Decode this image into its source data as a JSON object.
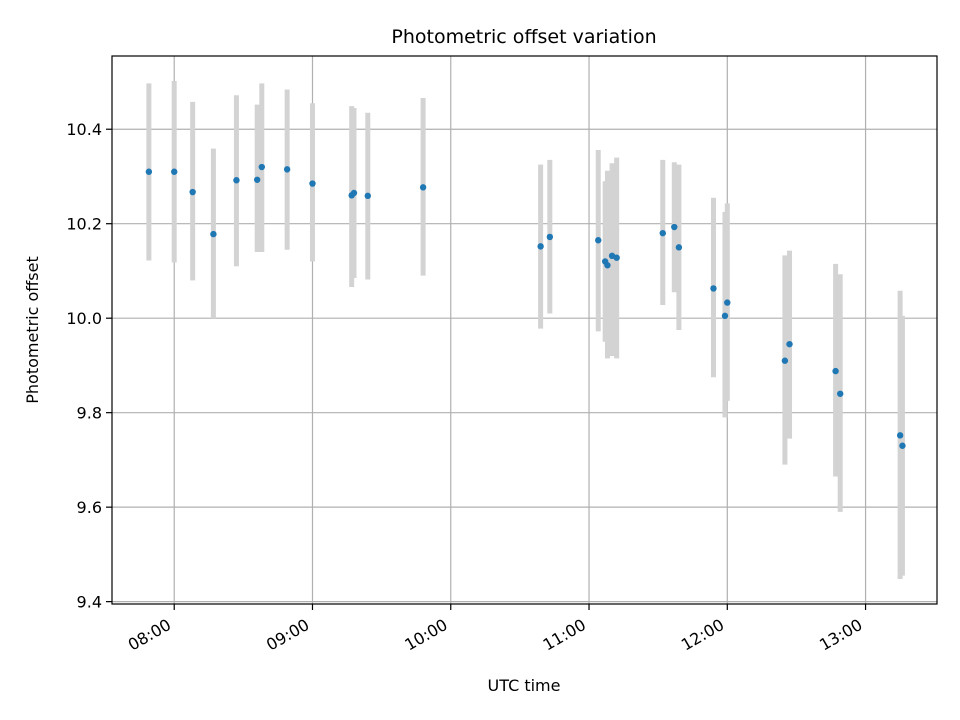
{
  "chart_data": {
    "type": "scatter",
    "title": "Photometric offset variation",
    "xlabel": "UTC time",
    "ylabel": "Photometric offset",
    "grid": true,
    "legend": "none",
    "x_ticks": [
      "08:00",
      "09:00",
      "10:00",
      "11:00",
      "12:00",
      "13:00"
    ],
    "y_ticks": [
      "9.4",
      "9.6",
      "9.8",
      "10.0",
      "10.2",
      "10.4"
    ],
    "xlim": [
      "07:33",
      "13:31"
    ],
    "ylim": [
      9.395,
      10.555
    ],
    "colors": {
      "point": "#1f77b4",
      "errorbar": "#d3d3d3",
      "grid": "#b0b0b0"
    },
    "points": [
      {
        "time": "07:49",
        "y": 10.31,
        "err_low": 10.122,
        "err_high": 10.497
      },
      {
        "time": "08:00",
        "y": 10.31,
        "err_low": 10.118,
        "err_high": 10.502
      },
      {
        "time": "08:08",
        "y": 10.267,
        "err_low": 10.08,
        "err_high": 10.458
      },
      {
        "time": "08:17",
        "y": 10.178,
        "err_low": 10.0,
        "err_high": 10.359
      },
      {
        "time": "08:27",
        "y": 10.292,
        "err_low": 10.11,
        "err_high": 10.472
      },
      {
        "time": "08:36",
        "y": 10.293,
        "err_low": 10.14,
        "err_high": 10.452
      },
      {
        "time": "08:38",
        "y": 10.32,
        "err_low": 10.14,
        "err_high": 10.497
      },
      {
        "time": "08:49",
        "y": 10.315,
        "err_low": 10.145,
        "err_high": 10.484
      },
      {
        "time": "09:00",
        "y": 10.285,
        "err_low": 10.12,
        "err_high": 10.455
      },
      {
        "time": "09:17",
        "y": 10.26,
        "err_low": 10.066,
        "err_high": 10.449
      },
      {
        "time": "09:18",
        "y": 10.265,
        "err_low": 10.085,
        "err_high": 10.445
      },
      {
        "time": "09:24",
        "y": 10.259,
        "err_low": 10.082,
        "err_high": 10.435
      },
      {
        "time": "09:48",
        "y": 10.277,
        "err_low": 10.09,
        "err_high": 10.466
      },
      {
        "time": "10:39",
        "y": 10.152,
        "err_low": 9.978,
        "err_high": 10.325
      },
      {
        "time": "10:43",
        "y": 10.172,
        "err_low": 10.01,
        "err_high": 10.335
      },
      {
        "time": "11:04",
        "y": 10.165,
        "err_low": 9.972,
        "err_high": 10.356
      },
      {
        "time": "11:07",
        "y": 10.12,
        "err_low": 9.95,
        "err_high": 10.29
      },
      {
        "time": "11:08",
        "y": 10.112,
        "err_low": 9.915,
        "err_high": 10.312
      },
      {
        "time": "11:10",
        "y": 10.132,
        "err_low": 9.92,
        "err_high": 10.328
      },
      {
        "time": "11:12",
        "y": 10.128,
        "err_low": 9.915,
        "err_high": 10.34
      },
      {
        "time": "11:32",
        "y": 10.18,
        "err_low": 10.028,
        "err_high": 10.335
      },
      {
        "time": "11:37",
        "y": 10.193,
        "err_low": 10.055,
        "err_high": 10.33
      },
      {
        "time": "11:39",
        "y": 10.15,
        "err_low": 9.975,
        "err_high": 10.325
      },
      {
        "time": "11:54",
        "y": 10.063,
        "err_low": 9.875,
        "err_high": 10.255
      },
      {
        "time": "11:59",
        "y": 10.005,
        "err_low": 9.79,
        "err_high": 10.225
      },
      {
        "time": "12:00",
        "y": 10.033,
        "err_low": 9.825,
        "err_high": 10.243
      },
      {
        "time": "12:25",
        "y": 9.91,
        "err_low": 9.69,
        "err_high": 10.133
      },
      {
        "time": "12:27",
        "y": 9.945,
        "err_low": 9.745,
        "err_high": 10.143
      },
      {
        "time": "12:47",
        "y": 9.888,
        "err_low": 9.665,
        "err_high": 10.115
      },
      {
        "time": "12:49",
        "y": 9.84,
        "err_low": 9.59,
        "err_high": 10.093
      },
      {
        "time": "13:15",
        "y": 9.752,
        "err_low": 9.448,
        "err_high": 10.058
      },
      {
        "time": "13:16",
        "y": 9.73,
        "err_low": 9.455,
        "err_high": 10.005
      }
    ]
  }
}
